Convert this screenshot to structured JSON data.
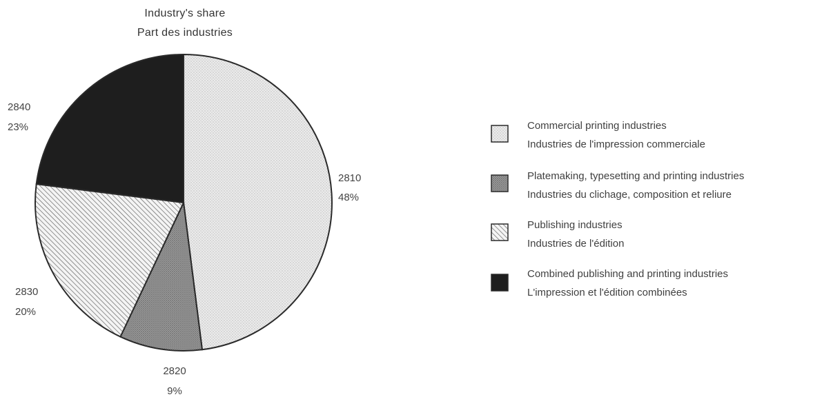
{
  "chart_data": {
    "type": "pie",
    "title": [
      "Industry's share",
      "Part des industries"
    ],
    "slices": [
      {
        "code": "2810",
        "value": 48,
        "label": "48%",
        "legend_en": "Commercial printing industries",
        "legend_fr": "Industries de l'impression commerciale",
        "fill": "pattern-dots-light"
      },
      {
        "code": "2820",
        "value": 9,
        "label": "9%",
        "legend_en": "Platemaking, typesetting and printing industries",
        "legend_fr": "Industries du clichage, composition et reliure",
        "fill": "pattern-dots-dark"
      },
      {
        "code": "2830",
        "value": 20,
        "label": "20%",
        "legend_en": "Publishing industries",
        "legend_fr": "Industries de l'édition",
        "fill": "pattern-hatch"
      },
      {
        "code": "2840",
        "value": 23,
        "label": "23%",
        "legend_en": "Combined publishing and printing industries",
        "legend_fr": "L'impression et l'édition combinées",
        "fill": "solid-black"
      }
    ],
    "legend_position": "right",
    "start": "top, clockwise"
  }
}
